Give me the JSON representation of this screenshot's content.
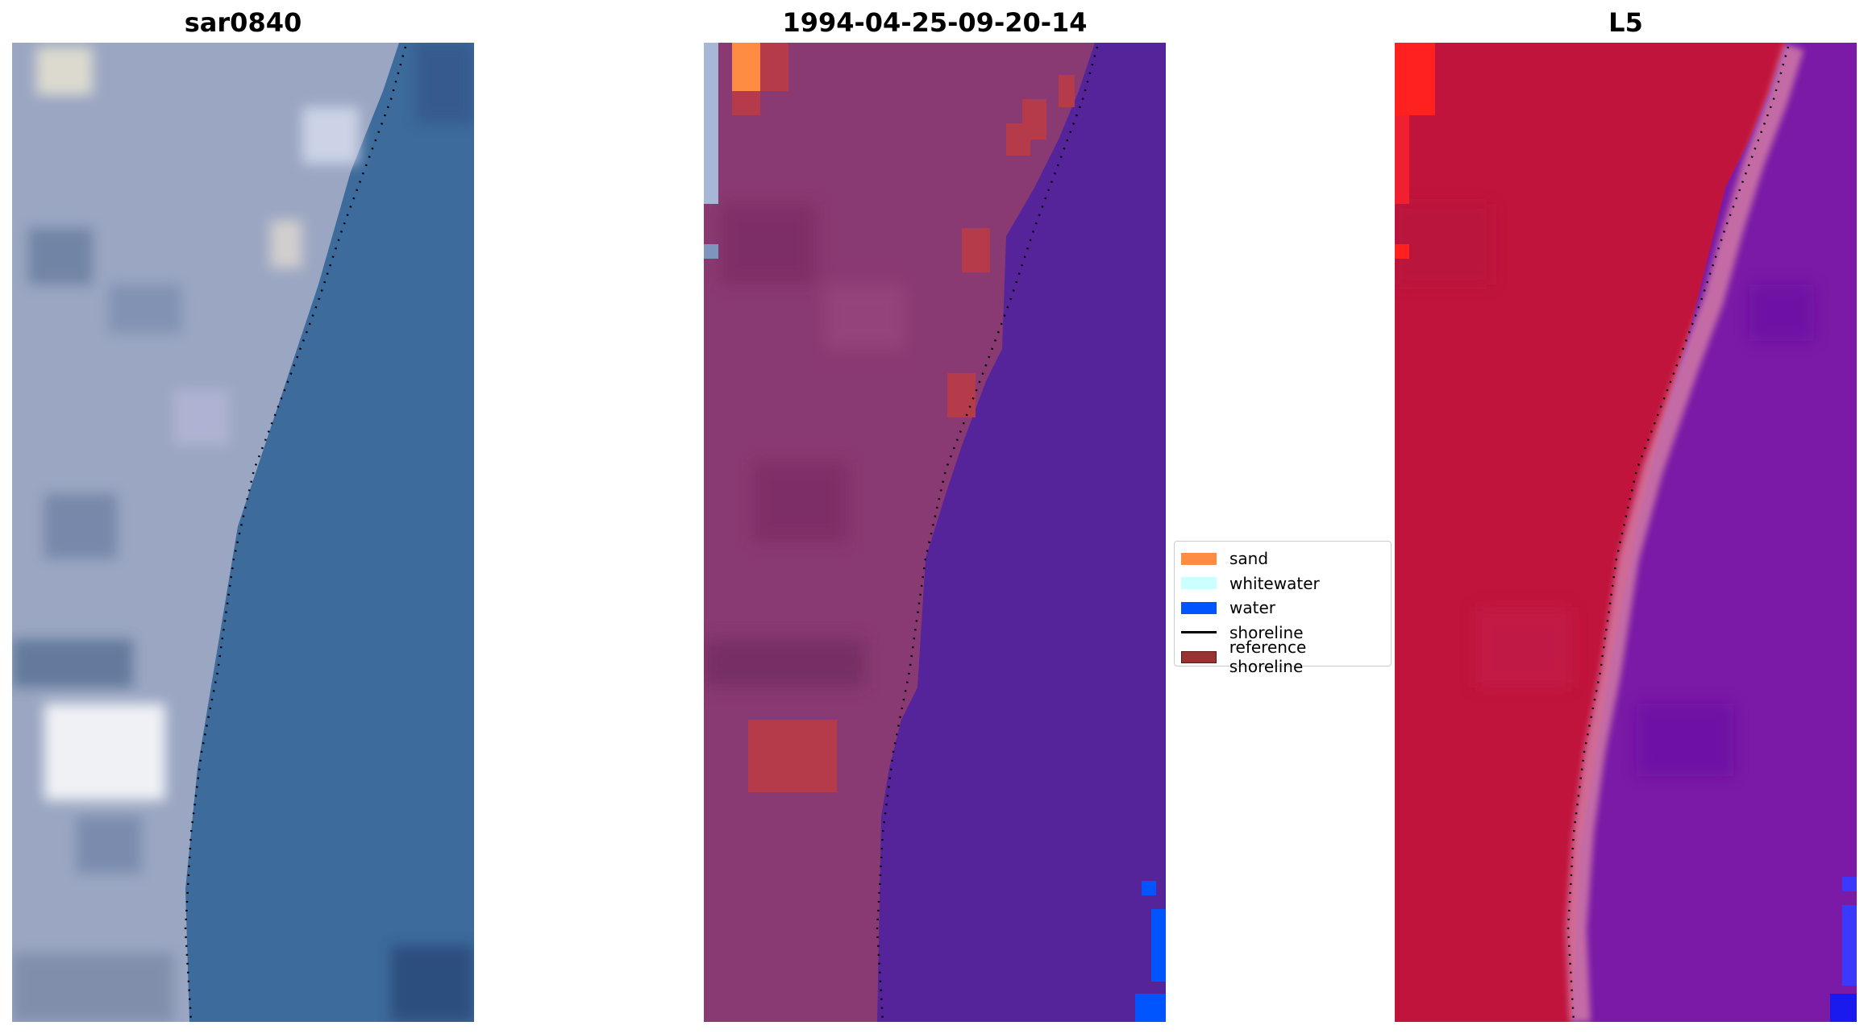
{
  "panels": [
    {
      "title": "sar0840"
    },
    {
      "title": "1994-04-25-09-20-14"
    },
    {
      "title": "L5"
    }
  ],
  "legend": {
    "items": [
      {
        "label": "sand",
        "color": "#ff8c42",
        "kind": "patch"
      },
      {
        "label": "whitewater",
        "color": "#ccffff",
        "kind": "patch"
      },
      {
        "label": "water",
        "color": "#0055ff",
        "kind": "patch"
      },
      {
        "label": "shoreline",
        "color": "#000000",
        "kind": "line"
      },
      {
        "label": "reference shoreline",
        "color": "#993333",
        "kind": "patch"
      }
    ]
  },
  "colors": {
    "rgb_land": "#9aa6c2",
    "rgb_sea": "#3c6a9a",
    "class_land": "#8a3a72",
    "class_water_tint": "#56249a",
    "class_sand_tint": "#b53b4a",
    "ir_land": "#c0143c",
    "ir_sea": "#7a1aa6"
  }
}
